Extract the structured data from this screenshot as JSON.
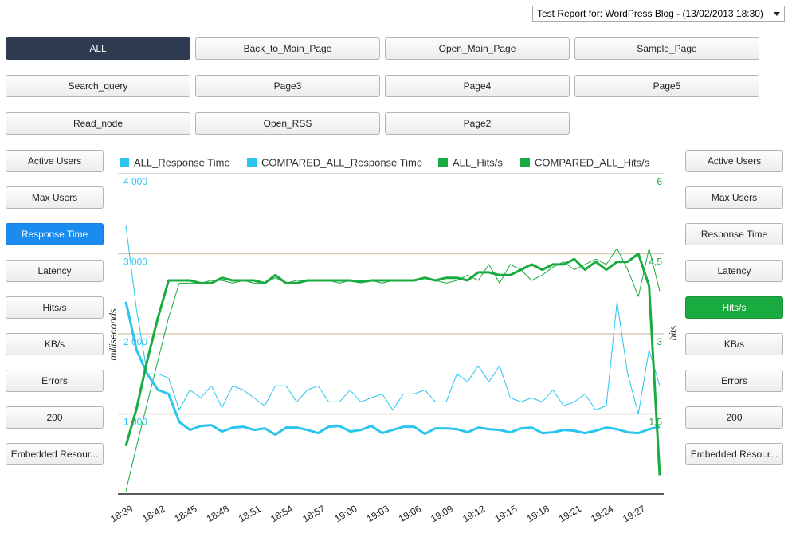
{
  "header": {
    "report_select": "Test Report for: WordPress Blog - (13/02/2013 18:30)"
  },
  "pages": [
    "ALL",
    "Back_to_Main_Page",
    "Open_Main_Page",
    "Sample_Page",
    "Search_query",
    "Page3",
    "Page4",
    "Page5",
    "Read_node",
    "Open_RSS",
    "Page2"
  ],
  "active_page": 0,
  "left_metrics": [
    "Active Users",
    "Max Users",
    "Response Time",
    "Latency",
    "Hits/s",
    "KB/s",
    "Errors",
    "200",
    "Embedded Resour..."
  ],
  "left_active": 2,
  "right_metrics": [
    "Active Users",
    "Max Users",
    "Response Time",
    "Latency",
    "Hits/s",
    "KB/s",
    "Errors",
    "200",
    "Embedded Resour..."
  ],
  "right_active": 4,
  "chart_data": {
    "type": "line",
    "ylabel": "milliseconds",
    "y2label": "hits",
    "categories": [
      "18:39",
      null,
      null,
      "18:42",
      null,
      null,
      "18:45",
      null,
      null,
      "18:48",
      null,
      null,
      "18:51",
      null,
      null,
      "18:54",
      null,
      null,
      "18:57",
      null,
      null,
      "19:00",
      null,
      null,
      "19:03",
      null,
      null,
      "19:06",
      null,
      null,
      "19:09",
      null,
      null,
      "19:12",
      null,
      null,
      "19:15",
      null,
      null,
      "19:18",
      null,
      null,
      "19:21",
      null,
      null,
      "19:24",
      null,
      null,
      "19:27",
      null,
      null
    ],
    "ylim": [
      0,
      4000
    ],
    "yticks": [
      {
        "value": 1000,
        "label": "1 000"
      },
      {
        "value": 2000,
        "label": "2 000"
      },
      {
        "value": 3000,
        "label": "3 000"
      },
      {
        "value": 4000,
        "label": "4 000"
      }
    ],
    "y2lim": [
      0,
      6
    ],
    "y2ticks": [
      {
        "value": 1.5,
        "label": "1,5"
      },
      3,
      {
        "value": 4.5,
        "label": "4,5"
      },
      6
    ],
    "grid": true,
    "legend": "top",
    "series": [
      {
        "name": "ALL_Response Time",
        "color": "#29c5ef",
        "width": 3,
        "values": [
          2400,
          1800,
          1500,
          1300,
          1250,
          900,
          800,
          850,
          860,
          780,
          830,
          840,
          800,
          820,
          740,
          830,
          830,
          800,
          760,
          840,
          850,
          780,
          800,
          850,
          760,
          800,
          840,
          840,
          750,
          820,
          820,
          810,
          770,
          830,
          810,
          800,
          770,
          820,
          830,
          760,
          770,
          800,
          790,
          760,
          790,
          830,
          810,
          770,
          760,
          810,
          840
        ]
      },
      {
        "name": "COMPARED_ALL_Response Time",
        "color": "#29c5ef",
        "width": 1,
        "values": [
          3350,
          2300,
          1500,
          1500,
          1450,
          1050,
          1300,
          1200,
          1350,
          1080,
          1350,
          1300,
          1200,
          1100,
          1350,
          1350,
          1150,
          1300,
          1350,
          1150,
          1150,
          1300,
          1150,
          1200,
          1250,
          1050,
          1250,
          1250,
          1300,
          1150,
          1150,
          1500,
          1400,
          1600,
          1400,
          1600,
          1200,
          1150,
          1200,
          1150,
          1300,
          1100,
          1150,
          1250,
          1050,
          1100,
          2400,
          1500,
          1000,
          1800,
          1350
        ]
      },
      {
        "name": "ALL_Hits/s",
        "color": "#1aab40",
        "width": 3,
        "axis": "y2",
        "values": [
          0.9,
          1.6,
          2.5,
          3.3,
          4.0,
          4.0,
          4.0,
          3.95,
          3.95,
          4.05,
          4.0,
          4.0,
          4.0,
          3.95,
          4.1,
          3.95,
          3.95,
          4.0,
          4.0,
          4.0,
          4.0,
          4.0,
          3.97,
          4.0,
          4.0,
          4.0,
          4.0,
          4.0,
          4.05,
          4.0,
          4.05,
          4.05,
          4.0,
          4.15,
          4.15,
          4.1,
          4.1,
          4.2,
          4.3,
          4.2,
          4.3,
          4.3,
          4.4,
          4.2,
          4.35,
          4.2,
          4.35,
          4.35,
          4.5,
          3.9,
          0.35
        ]
      },
      {
        "name": "COMPARED_ALL_Hits/s",
        "color": "#1aab40",
        "width": 1,
        "axis": "y2",
        "values": [
          0.05,
          0.9,
          1.7,
          2.5,
          3.3,
          3.95,
          3.95,
          3.95,
          4.0,
          4.0,
          3.95,
          4.0,
          3.95,
          3.95,
          4.05,
          3.95,
          4.0,
          4.0,
          4.0,
          4.0,
          3.95,
          4.0,
          4.0,
          4.0,
          3.95,
          4.0,
          4.0,
          4.0,
          4.05,
          4.0,
          3.95,
          4.0,
          4.1,
          4.0,
          4.3,
          3.95,
          4.3,
          4.2,
          4.0,
          4.1,
          4.25,
          4.35,
          4.2,
          4.3,
          4.4,
          4.3,
          4.6,
          4.2,
          3.7,
          4.6,
          3.8
        ]
      }
    ]
  }
}
